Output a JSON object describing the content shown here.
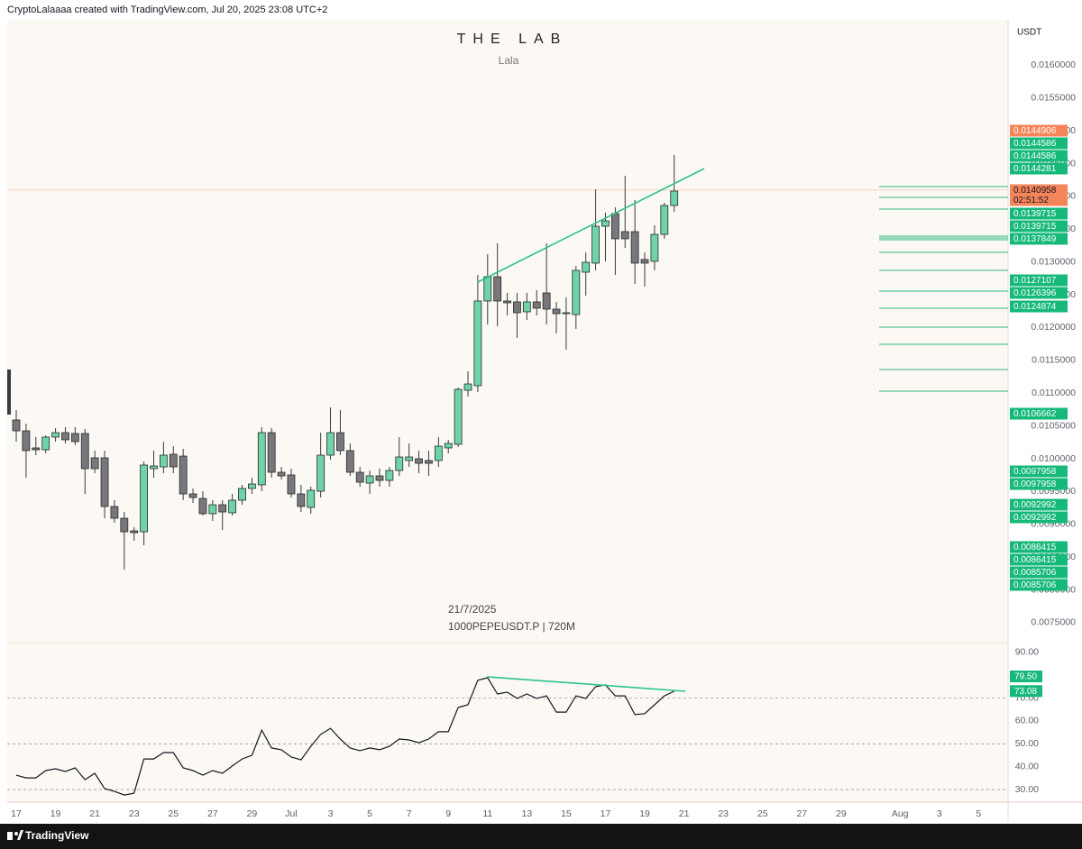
{
  "header": {
    "credit": "CryptoLalaaaa created with TradingView.com, Jul 20, 2025 23:08 UTC+2"
  },
  "chart_data": [
    {
      "type": "candlestick",
      "title": "THE LAB",
      "subtitle": "Lala",
      "axis_unit": "USDT",
      "annotations": [
        "21/7/2025",
        "1000PEPEUSDT.P | 720M"
      ],
      "x": [
        0,
        1,
        2,
        3,
        4,
        5,
        6,
        7,
        8,
        9,
        10,
        11,
        12,
        13,
        14,
        15,
        16,
        17,
        18,
        19,
        20,
        21,
        22,
        23,
        24,
        25,
        26,
        27,
        28,
        29,
        30,
        31,
        32,
        33,
        34,
        35,
        36,
        37,
        38,
        39,
        40,
        41,
        42,
        43,
        44,
        45,
        46,
        47,
        48,
        49,
        50,
        51,
        52,
        53,
        54,
        55,
        56,
        57,
        58,
        59,
        60,
        61,
        62,
        63,
        64,
        65,
        66,
        67
      ],
      "open": [
        0.010591,
        0.010426,
        0.010165,
        0.010137,
        0.01033,
        0.010398,
        0.010385,
        0.010385,
        0.010014,
        0.010014,
        0.009272,
        0.009093,
        0.008901,
        0.008887,
        0.009849,
        0.009876,
        0.010069,
        0.010041,
        0.009464,
        0.009395,
        0.009162,
        0.009299,
        0.009176,
        0.009368,
        0.009547,
        0.009602,
        0.010398,
        0.009794,
        0.009753,
        0.009464,
        0.009258,
        0.009505,
        0.010055,
        0.010398,
        0.010124,
        0.009794,
        0.009629,
        0.009739,
        0.00967,
        0.009821,
        0.009973,
        0.01,
        0.009973,
        0.009973,
        0.010165,
        0.01022,
        0.011044,
        0.011113,
        0.012405,
        0.012775,
        0.012405,
        0.012391,
        0.01224,
        0.012391,
        0.012528,
        0.012281,
        0.012212,
        0.012198,
        0.012844,
        0.012982,
        0.013545,
        0.013737,
        0.013462,
        0.013462,
        0.013037,
        0.013009,
        0.013421,
        0.013861
      ],
      "high": [
        0.010742,
        0.010536,
        0.01033,
        0.010357,
        0.010467,
        0.010481,
        0.010481,
        0.010453,
        0.010124,
        0.010124,
        0.009368,
        0.009189,
        0.008956,
        0.009959,
        0.010124,
        0.010261,
        0.010192,
        0.010151,
        0.009547,
        0.009505,
        0.009368,
        0.009368,
        0.009464,
        0.009602,
        0.009711,
        0.010481,
        0.010467,
        0.009876,
        0.009849,
        0.009602,
        0.009574,
        0.010398,
        0.010783,
        0.010742,
        0.010234,
        0.009876,
        0.009821,
        0.009849,
        0.009876,
        0.01033,
        0.010234,
        0.010124,
        0.010124,
        0.01033,
        0.010289,
        0.011085,
        0.011333,
        0.012803,
        0.013119,
        0.013284,
        0.012528,
        0.012528,
        0.012528,
        0.012569,
        0.013284,
        0.012391,
        0.012459,
        0.01294,
        0.013146,
        0.014108,
        0.013751,
        0.013833,
        0.014314,
        0.013943,
        0.013146,
        0.013559,
        0.013902,
        0.01463
      ],
      "low": [
        0.010261,
        0.009711,
        0.010055,
        0.010082,
        0.010261,
        0.010234,
        0.010206,
        0.009464,
        0.00978,
        0.009093,
        0.009024,
        0.00831,
        0.00875,
        0.008681,
        0.009711,
        0.00978,
        0.00978,
        0.009368,
        0.009327,
        0.009134,
        0.009052,
        0.008915,
        0.009134,
        0.009299,
        0.009464,
        0.009505,
        0.009711,
        0.009684,
        0.009409,
        0.009189,
        0.009162,
        0.009409,
        0.009986,
        0.010055,
        0.009739,
        0.009574,
        0.009464,
        0.009574,
        0.009574,
        0.009739,
        0.009876,
        0.00978,
        0.009739,
        0.009876,
        0.010082,
        0.010179,
        0.010948,
        0.011017,
        0.012047,
        0.01202,
        0.012185,
        0.011841,
        0.012116,
        0.012185,
        0.012047,
        0.01191,
        0.011663,
        0.011979,
        0.012487,
        0.012872,
        0.013009,
        0.012803,
        0.013215,
        0.012666,
        0.012624,
        0.012872,
        0.013353,
        0.013765
      ],
      "close": [
        0.010426,
        0.010124,
        0.010137,
        0.01033,
        0.010398,
        0.010289,
        0.010261,
        0.009849,
        0.009849,
        0.009272,
        0.009093,
        0.008887,
        0.008873,
        0.009904,
        0.00989,
        0.010055,
        0.009876,
        0.009464,
        0.009409,
        0.009162,
        0.009299,
        0.009189,
        0.009368,
        0.009547,
        0.009615,
        0.010398,
        0.009794,
        0.009739,
        0.009464,
        0.009272,
        0.009519,
        0.010055,
        0.010398,
        0.010124,
        0.009794,
        0.009643,
        0.009739,
        0.00967,
        0.009821,
        0.010027,
        0.010027,
        0.009931,
        0.009931,
        0.010192,
        0.010234,
        0.011058,
        0.01114,
        0.012405,
        0.012775,
        0.012405,
        0.012377,
        0.012226,
        0.012391,
        0.012295,
        0.012281,
        0.012212,
        0.012226,
        0.012872,
        0.012995,
        0.013545,
        0.013627,
        0.013353,
        0.013353,
        0.012982,
        0.012982,
        0.013421,
        0.013861,
        0.014081
      ],
      "up_color": "#6fd3a8",
      "down_color": "#77777c",
      "xlim": [
        -0.92,
        101.0
      ],
      "xticks": [
        {
          "value": 0,
          "label": "17"
        },
        {
          "value": 4,
          "label": "19"
        },
        {
          "value": 8,
          "label": "21"
        },
        {
          "value": 12,
          "label": "23"
        },
        {
          "value": 16,
          "label": "25"
        },
        {
          "value": 20,
          "label": "27"
        },
        {
          "value": 24,
          "label": "29"
        },
        {
          "value": 28,
          "label": "Jul"
        },
        {
          "value": 32,
          "label": "3"
        },
        {
          "value": 36,
          "label": "5"
        },
        {
          "value": 40,
          "label": "7"
        },
        {
          "value": 44,
          "label": "9"
        },
        {
          "value": 48,
          "label": "11"
        },
        {
          "value": 52,
          "label": "13"
        },
        {
          "value": 56,
          "label": "15"
        },
        {
          "value": 60,
          "label": "17"
        },
        {
          "value": 64,
          "label": "19"
        },
        {
          "value": 68,
          "label": "21"
        },
        {
          "value": 72,
          "label": "23"
        },
        {
          "value": 76,
          "label": "25"
        },
        {
          "value": 80,
          "label": "27"
        },
        {
          "value": 84,
          "label": "29"
        },
        {
          "value": 90,
          "label": "Aug"
        },
        {
          "value": 94,
          "label": "3"
        },
        {
          "value": 98,
          "label": "5"
        }
      ],
      "ylim": [
        0.007211,
        0.016691
      ],
      "yticks": [
        {
          "value": 0.0075,
          "label": "0.0075000"
        },
        {
          "value": 0.008,
          "label": "0.0080000"
        },
        {
          "value": 0.0085,
          "label": "0.0085000"
        },
        {
          "value": 0.009,
          "label": "0.0090000"
        },
        {
          "value": 0.0095,
          "label": "0.0095000"
        },
        {
          "value": 0.01,
          "label": "0.0100000"
        },
        {
          "value": 0.0105,
          "label": "0.0105000"
        },
        {
          "value": 0.011,
          "label": "0.0110000"
        },
        {
          "value": 0.0115,
          "label": "0.0115000"
        },
        {
          "value": 0.012,
          "label": "0.0120000"
        },
        {
          "value": 0.0125,
          "label": "0.0125000"
        },
        {
          "value": 0.013,
          "label": "0.0130000"
        },
        {
          "value": 0.0135,
          "label": "0.0135000"
        },
        {
          "value": 0.014,
          "label": "0.0140000"
        },
        {
          "value": 0.0145,
          "label": "0.0145000"
        },
        {
          "value": 0.015,
          "label": "0.0150000"
        },
        {
          "value": 0.0155,
          "label": "0.0155000"
        },
        {
          "value": 0.016,
          "label": "0.0160000"
        }
      ],
      "grid": false,
      "levels": [
        0.014149,
        0.013985,
        0.013806,
        0.013394,
        0.013366,
        0.013339,
        0.013146,
        0.012872,
        0.012556,
        0.012295,
        0.012006,
        0.011745,
        0.01136,
        0.011031
      ],
      "level_color": "#2fb97d",
      "trendline": {
        "x": [
          47.0,
          70.06
        ],
        "y": [
          0.012693,
          0.014424
        ],
        "color": "#2bc48a"
      },
      "last_price": {
        "value": 0.0140958,
        "countdown": "02:51:52",
        "color": "#f5845a"
      },
      "price_labels": [
        {
          "value": 0.0144906,
          "color": "#f5845a"
        },
        {
          "value": 0.0144586,
          "color": "#16b979"
        },
        {
          "value": 0.0144586,
          "color": "#16b979"
        },
        {
          "value": 0.0144281,
          "color": "#16b979"
        },
        {
          "value": 0.0139715,
          "color": "#16b979"
        },
        {
          "value": 0.0139715,
          "color": "#16b979"
        },
        {
          "value": 0.0137849,
          "color": "#16b979"
        },
        {
          "value": 0.0127107,
          "color": "#16b979"
        },
        {
          "value": 0.0126396,
          "color": "#16b979"
        },
        {
          "value": 0.0124874,
          "color": "#16b979"
        },
        {
          "value": 0.0106662,
          "color": "#16b979"
        },
        {
          "value": 0.0097958,
          "color": "#16b979"
        },
        {
          "value": 0.0097958,
          "color": "#16b979"
        },
        {
          "value": 0.0092992,
          "color": "#16b979"
        },
        {
          "value": 0.0092992,
          "color": "#16b979"
        },
        {
          "value": 0.0086415,
          "color": "#16b979"
        },
        {
          "value": 0.0086415,
          "color": "#16b979"
        },
        {
          "value": 0.0085706,
          "color": "#16b979"
        },
        {
          "value": 0.0085706,
          "color": "#16b979"
        }
      ]
    },
    {
      "type": "line",
      "x": [
        0,
        1,
        2,
        3,
        4,
        5,
        6,
        7,
        8,
        9,
        10,
        11,
        12,
        13,
        14,
        15,
        16,
        17,
        18,
        19,
        20,
        21,
        22,
        23,
        24,
        25,
        26,
        27,
        28,
        29,
        30,
        31,
        32,
        33,
        34,
        35,
        36,
        37,
        38,
        39,
        40,
        41,
        42,
        43,
        44,
        45,
        46,
        47,
        48,
        49,
        50,
        51,
        52,
        53,
        54,
        55,
        56,
        57,
        58,
        59,
        60,
        61,
        62,
        63,
        64,
        65,
        66,
        67
      ],
      "values": [
        36.3,
        35.1,
        35.1,
        38.3,
        39.1,
        37.9,
        39.5,
        34.3,
        37.1,
        30.4,
        29.2,
        27.6,
        28.4,
        43.4,
        43.4,
        46.2,
        46.2,
        39.5,
        38.3,
        36.3,
        38.3,
        37.1,
        40.3,
        43.4,
        45.0,
        56.0,
        48.2,
        47.4,
        44.2,
        43.0,
        48.9,
        54.1,
        56.8,
        52.1,
        48.2,
        47.0,
        48.2,
        47.4,
        48.9,
        52.1,
        51.7,
        50.5,
        52.1,
        55.3,
        55.3,
        65.9,
        67.1,
        77.8,
        78.9,
        71.8,
        72.6,
        69.9,
        71.8,
        69.9,
        71.0,
        63.9,
        63.9,
        71.0,
        69.9,
        75.0,
        75.8,
        71.0,
        71.0,
        62.8,
        63.2,
        67.1,
        71.0,
        73.0
      ],
      "color": "#131722",
      "xlim": [
        -0.92,
        101.0
      ],
      "ylim": [
        24.5,
        93.5
      ],
      "yticks": [
        {
          "value": 30,
          "label": "30.00"
        },
        {
          "value": 40,
          "label": "40.00"
        },
        {
          "value": 50,
          "label": "50.00"
        },
        {
          "value": 60,
          "label": "60.00"
        },
        {
          "value": 70,
          "label": "70.00"
        },
        {
          "value": 80,
          "label": "80.00"
        },
        {
          "value": 90,
          "label": "90.00"
        }
      ],
      "dashed_levels": [
        70,
        50,
        30
      ],
      "trendline": {
        "x": [
          47.93,
          68.14
        ],
        "y": [
          79.34,
          73.0
        ],
        "color": "#2bc48a"
      },
      "axis_labels": [
        {
          "value": 79.5,
          "label": "79.50",
          "color": "#16b979"
        },
        {
          "value": 73.08,
          "label": "73.08",
          "color": "#16b979"
        }
      ]
    }
  ],
  "footer": {
    "brand": "TradingView"
  }
}
